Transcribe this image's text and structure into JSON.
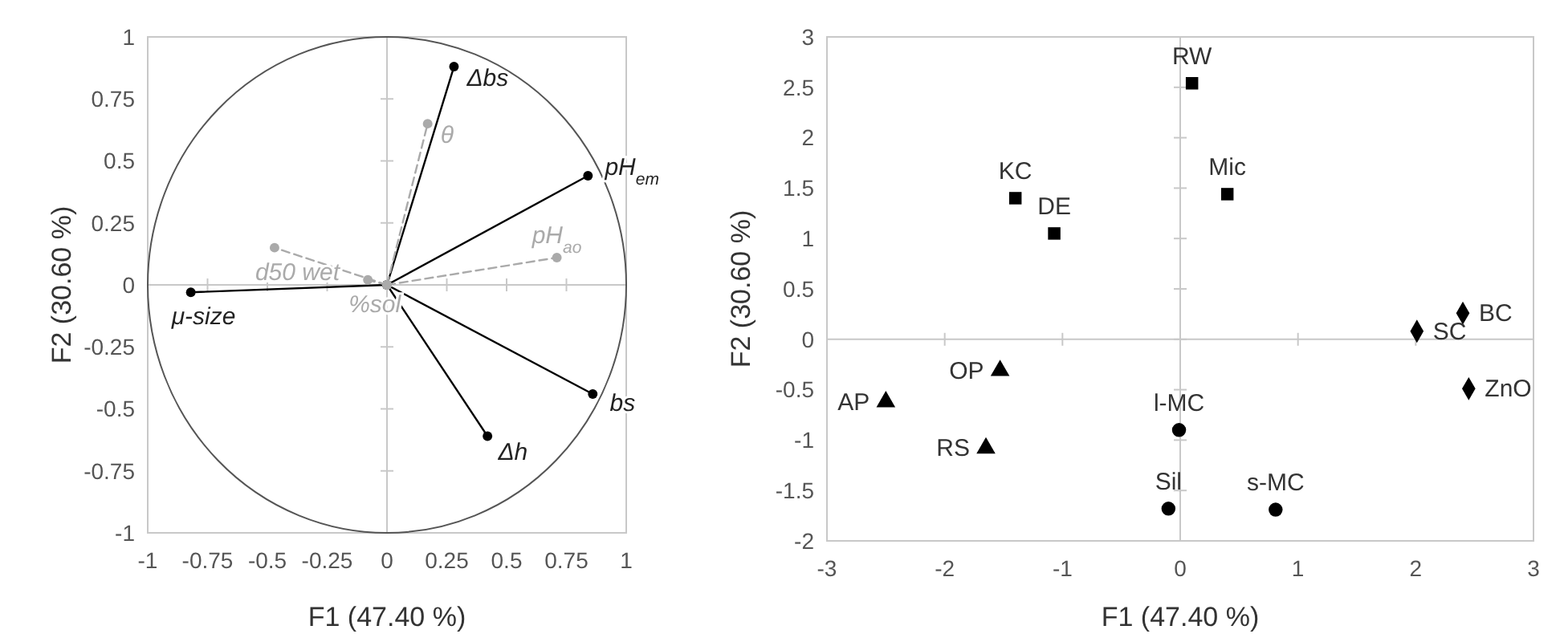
{
  "chart_data": [
    {
      "type": "line",
      "xlabel": "F1 (47.40 %)",
      "ylabel": "F2 (30.60 %)",
      "xlim": [
        -1,
        1
      ],
      "ylim": [
        -1,
        1
      ],
      "xticks": [
        -1,
        -0.75,
        -0.5,
        -0.25,
        0,
        0.25,
        0.5,
        0.75,
        1
      ],
      "yticks": [
        -1,
        -0.75,
        -0.5,
        -0.25,
        0,
        0.25,
        0.5,
        0.75,
        1
      ],
      "legend": false,
      "series": [
        {
          "name": "Δbs",
          "color": "#000000",
          "line_style": "solid",
          "marker": "circle",
          "x": [
            0,
            0.28
          ],
          "values": [
            0,
            0.88
          ]
        },
        {
          "name": "pH$_{em}$",
          "color": "#000000",
          "line_style": "solid",
          "marker": "circle",
          "x": [
            0,
            0.84
          ],
          "values": [
            0,
            0.44
          ]
        },
        {
          "name": "bs",
          "color": "#000000",
          "line_style": "solid",
          "marker": "circle",
          "x": [
            0,
            0.86
          ],
          "values": [
            0,
            -0.44
          ]
        },
        {
          "name": "Δh",
          "color": "#000000",
          "line_style": "solid",
          "marker": "circle",
          "x": [
            0,
            0.42
          ],
          "values": [
            0,
            -0.61
          ]
        },
        {
          "name": "μ-size",
          "color": "#000000",
          "line_style": "solid",
          "marker": "circle",
          "x": [
            0,
            -0.82
          ],
          "values": [
            0,
            -0.03
          ]
        },
        {
          "name": "θ",
          "color": "#aaaaaa",
          "line_style": "dashed",
          "marker": "circle",
          "x": [
            0,
            0.17
          ],
          "values": [
            0,
            0.65
          ]
        },
        {
          "name": "d50 wet",
          "color": "#aaaaaa",
          "line_style": "dashed",
          "marker": "circle",
          "x": [
            0,
            -0.47
          ],
          "values": [
            0,
            0.15
          ]
        },
        {
          "name": "%sol",
          "color": "#aaaaaa",
          "line_style": "dashed",
          "marker": "circle",
          "x": [
            0,
            -0.08
          ],
          "values": [
            0,
            0.02
          ]
        },
        {
          "name": "pH$_{ao}$",
          "color": "#aaaaaa",
          "line_style": "dashed",
          "marker": "circle",
          "x": [
            0,
            0.71
          ],
          "values": [
            0,
            0.11
          ]
        }
      ]
    },
    {
      "type": "scatter",
      "xlabel": "F1 (47.40 %)",
      "ylabel": "F2 (30.60 %)",
      "xlim": [
        -3,
        3
      ],
      "ylim": [
        -2,
        3
      ],
      "xticks": [
        -3,
        -2,
        -1,
        0,
        1,
        2,
        3
      ],
      "yticks": [
        -2,
        -1.5,
        -1,
        -0.5,
        0,
        0.5,
        1,
        1.5,
        2,
        2.5,
        3
      ],
      "legend": false,
      "series": [
        {
          "color": "#000000",
          "marker": "square",
          "x": [
            -1.4,
            -1.07,
            0.1,
            0.4
          ],
          "values": [
            1.4,
            1.05,
            2.54,
            1.44
          ]
        },
        {
          "color": "#000000",
          "marker": "diamond",
          "x": [
            2.4,
            2.01,
            2.45
          ],
          "values": [
            0.26,
            0.08,
            -0.49
          ]
        },
        {
          "color": "#000000",
          "marker": "triangle",
          "x": [
            -1.53,
            -2.5,
            -1.65
          ],
          "values": [
            -0.31,
            -0.62,
            -1.08
          ]
        },
        {
          "color": "#000000",
          "marker": "circle",
          "x": [
            -0.01,
            -0.1,
            0.81
          ],
          "values": [
            -0.9,
            -1.68,
            -1.69
          ]
        }
      ],
      "annotations": [
        {
          "text": "KC",
          "x": -1.4,
          "y": 1.4
        },
        {
          "text": "DE",
          "x": -1.07,
          "y": 1.05
        },
        {
          "text": "RW",
          "x": 0.1,
          "y": 2.54
        },
        {
          "text": "Mic",
          "x": 0.4,
          "y": 1.44
        },
        {
          "text": "BC",
          "x": 2.4,
          "y": 0.26
        },
        {
          "text": "SC",
          "x": 2.01,
          "y": 0.08
        },
        {
          "text": "ZnO",
          "x": 2.45,
          "y": -0.49
        },
        {
          "text": "OP",
          "x": -1.53,
          "y": -0.31
        },
        {
          "text": "AP",
          "x": -2.5,
          "y": -0.62
        },
        {
          "text": "RS",
          "x": -1.65,
          "y": -1.08
        },
        {
          "text": "l-MC",
          "x": -0.01,
          "y": -0.9
        },
        {
          "text": "Sil",
          "x": -0.1,
          "y": -1.68
        },
        {
          "text": "s-MC",
          "x": 0.81,
          "y": -1.69
        }
      ]
    }
  ]
}
